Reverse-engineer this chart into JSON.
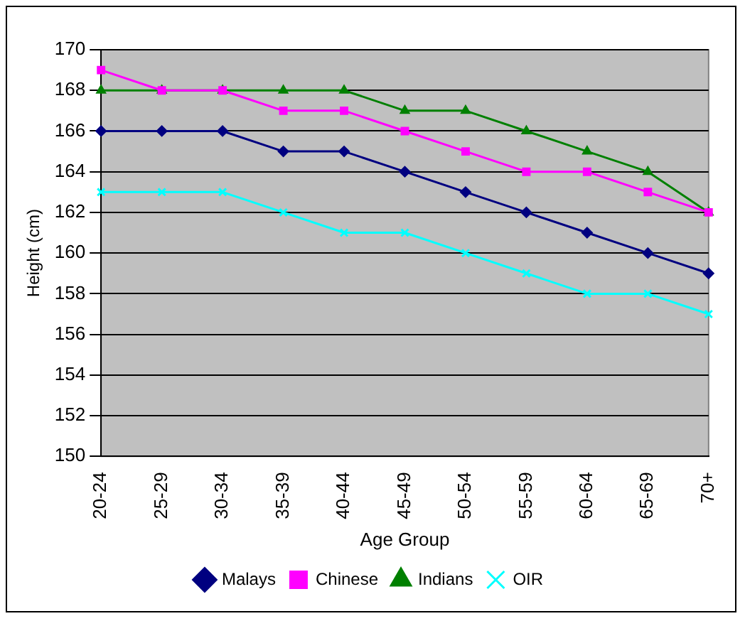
{
  "chart_data": {
    "type": "line",
    "xlabel": "Age Group",
    "ylabel": "Height (cm)",
    "categories": [
      "20-24",
      "25-29",
      "30-34",
      "35-39",
      "40-44",
      "45-49",
      "50-54",
      "55-59",
      "60-64",
      "65-69",
      "70+"
    ],
    "series": [
      {
        "name": "Malays",
        "color": "#000080",
        "marker": "diamond",
        "values": [
          166,
          166,
          166,
          165,
          165,
          164,
          163,
          162,
          161,
          160,
          159
        ]
      },
      {
        "name": "Chinese",
        "color": "#ff00ff",
        "marker": "square",
        "values": [
          169,
          168,
          168,
          167,
          167,
          166,
          165,
          164,
          164,
          163,
          162
        ]
      },
      {
        "name": "Indians",
        "color": "#008000",
        "marker": "triangle",
        "values": [
          168,
          168,
          168,
          168,
          168,
          167,
          167,
          166,
          165,
          164,
          162
        ]
      },
      {
        "name": "OIR",
        "color": "#00ffff",
        "marker": "cross",
        "values": [
          163,
          163,
          163,
          162,
          161,
          161,
          160,
          159,
          158,
          158,
          157
        ]
      }
    ],
    "ylim": [
      150,
      170
    ],
    "yticks": [
      150,
      152,
      154,
      156,
      158,
      160,
      162,
      164,
      166,
      168,
      170
    ],
    "grid": "y",
    "legend": "bottom",
    "line_style": "solid"
  }
}
